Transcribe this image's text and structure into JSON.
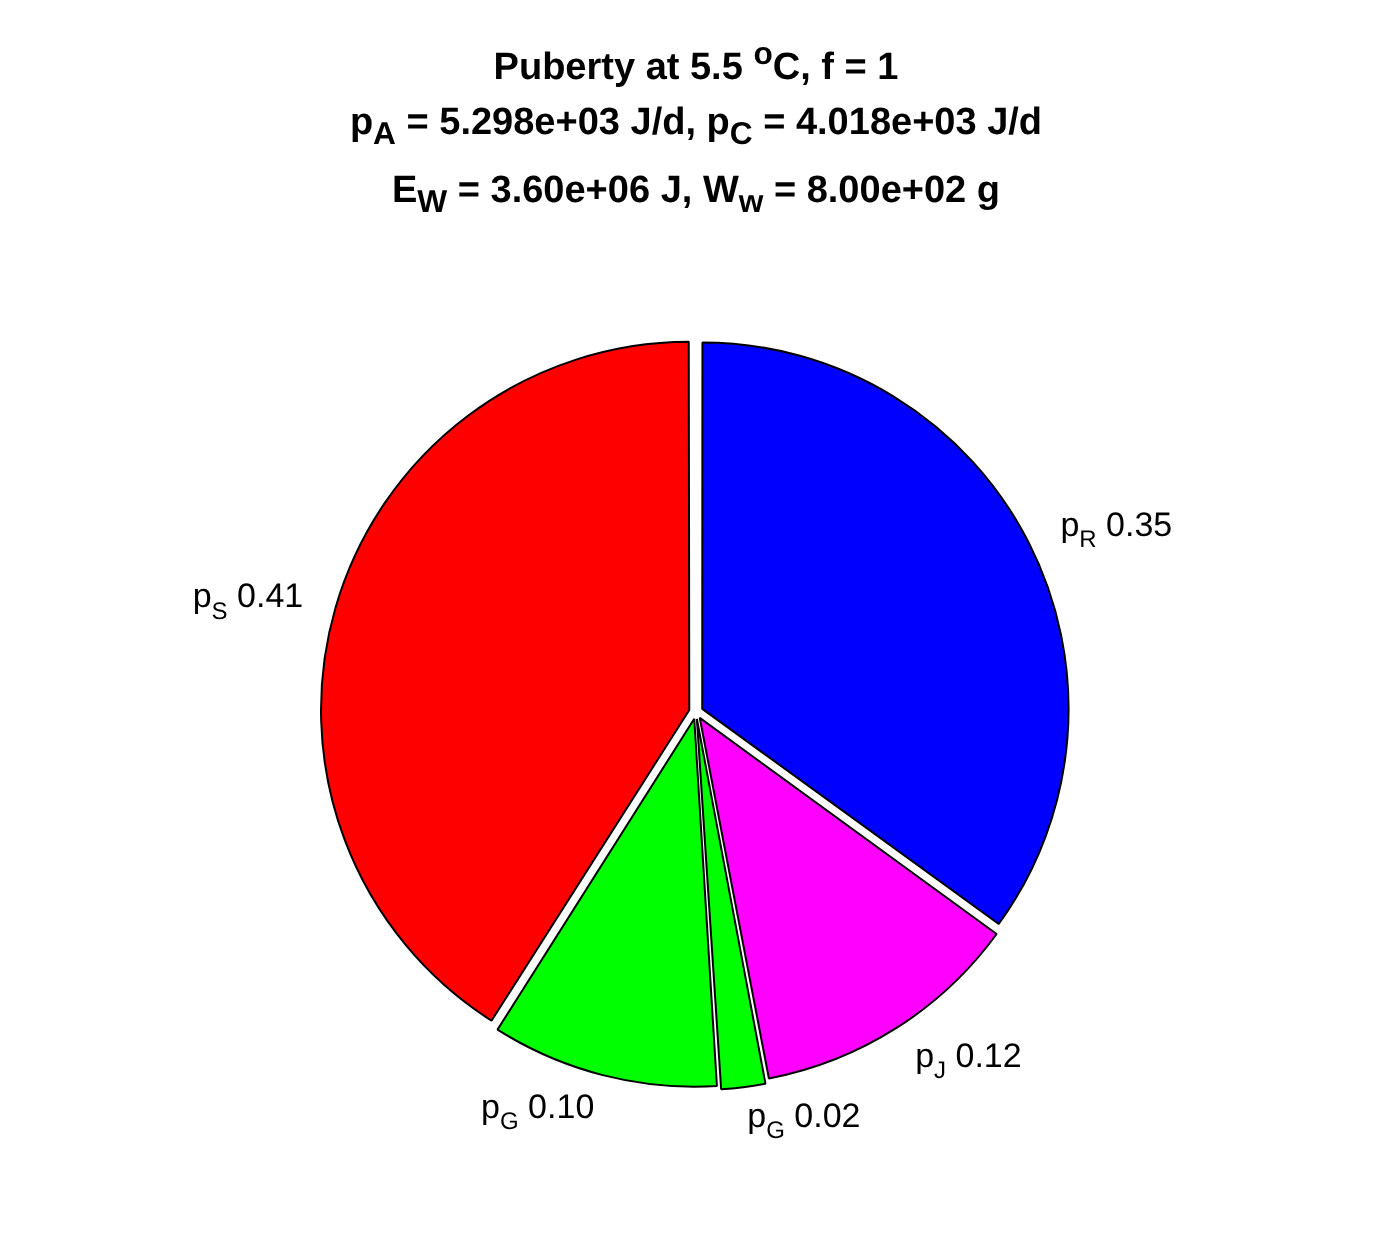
{
  "chart_data": {
    "type": "pie",
    "title": "Puberty at 5.5 $^{o}$C, f = 1\np$_{A}$ = 5.298e+03 J/d,  p$_{C}$ = 4.018e+03 J/d\nE$_{W}$ = 3.60e+06 J, W$_{w}$ = 8.00e+02 g",
    "categories": [
      "p$_{R}$",
      "p$_{J}$",
      "p$_{G}$",
      "p$_{G}$",
      "p$_{S}$"
    ],
    "values": [
      0.35,
      0.12,
      0.02,
      0.1,
      0.41
    ],
    "colors": [
      "#0000ff",
      "#ff00ff",
      "#00ff00",
      "#00ff00",
      "#ff0000"
    ],
    "value_labels": [
      "0.35",
      "0.12",
      "0.02",
      "0.10",
      "0.41"
    ]
  }
}
